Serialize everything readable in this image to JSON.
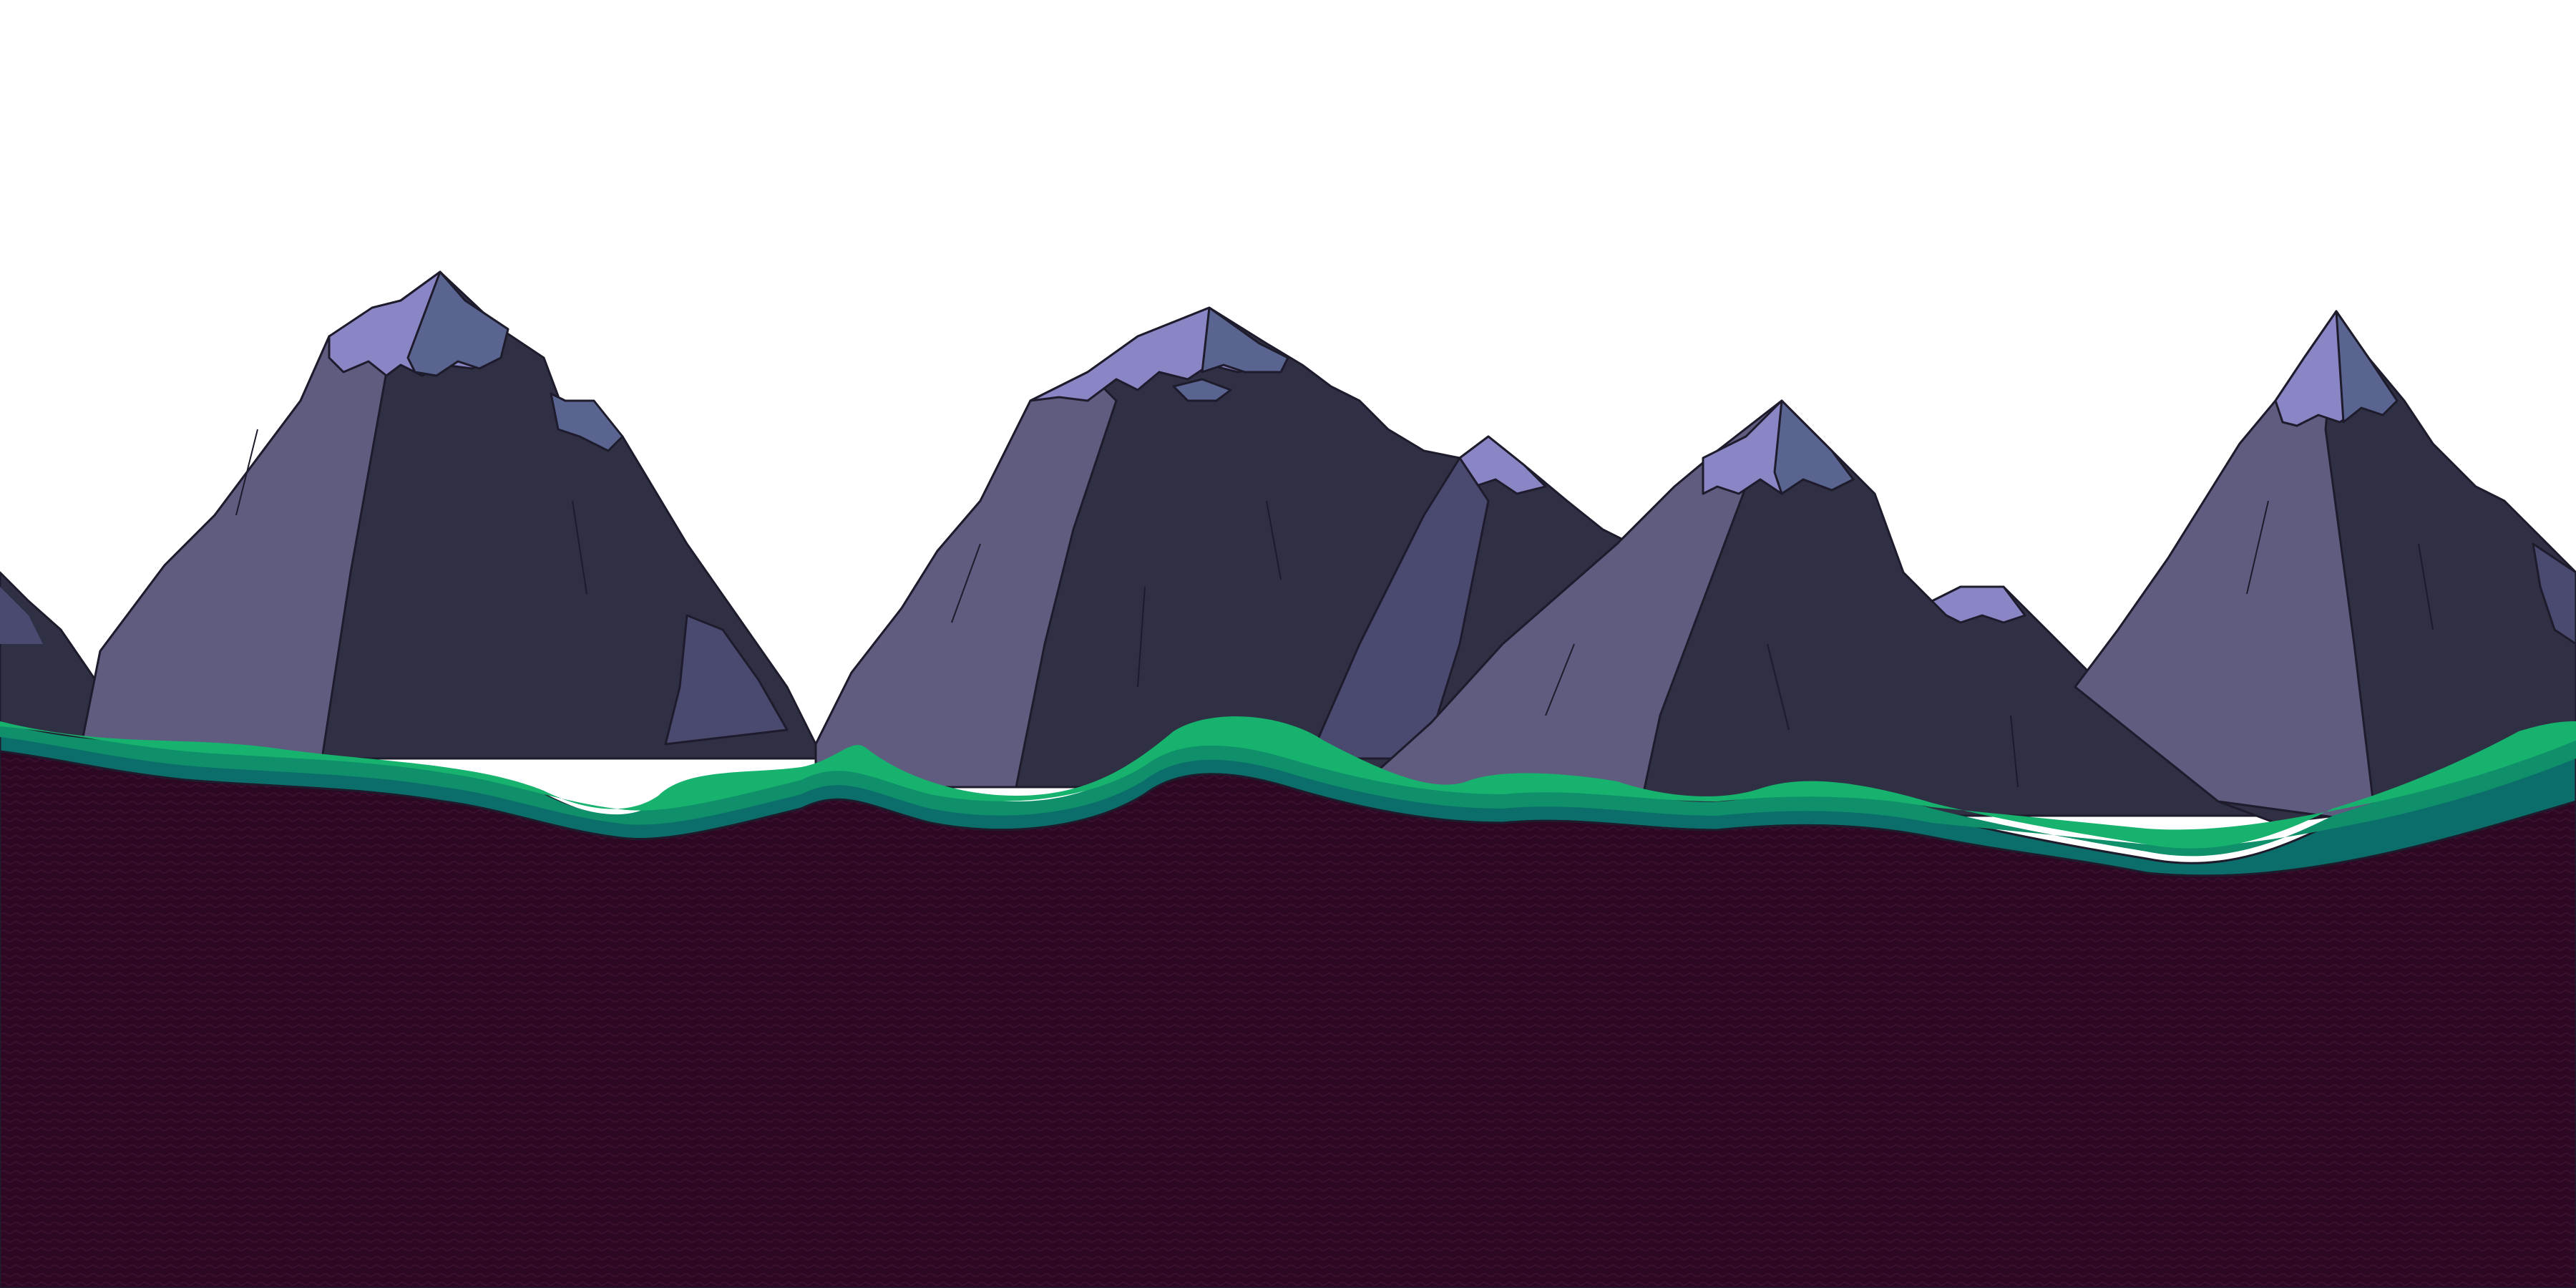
{
  "scene": {
    "type": "2d-platformer-background",
    "layers": [
      "sky",
      "mountains",
      "grass-strip",
      "dirt-ground"
    ]
  },
  "colors": {
    "sky": "#ffffff",
    "mountain_lit_face": "#5f5c80",
    "mountain_shadow_face": "#2f3044",
    "mountain_mid_face": "#4a4a70",
    "snow_lit": "#8a85c4",
    "snow_shadow": "#5a6490",
    "outline": "#1e1c2c",
    "grass_top": "#17b36e",
    "grass_mid": "#0f8f6a",
    "grass_dark": "#0b6e6a",
    "dirt": "#2c0823",
    "dirt_texture": "#3a0f2f"
  },
  "icons": {
    "mountains": "mountain-icon",
    "grass": "grass-strip",
    "ground": "dirt-ground"
  }
}
